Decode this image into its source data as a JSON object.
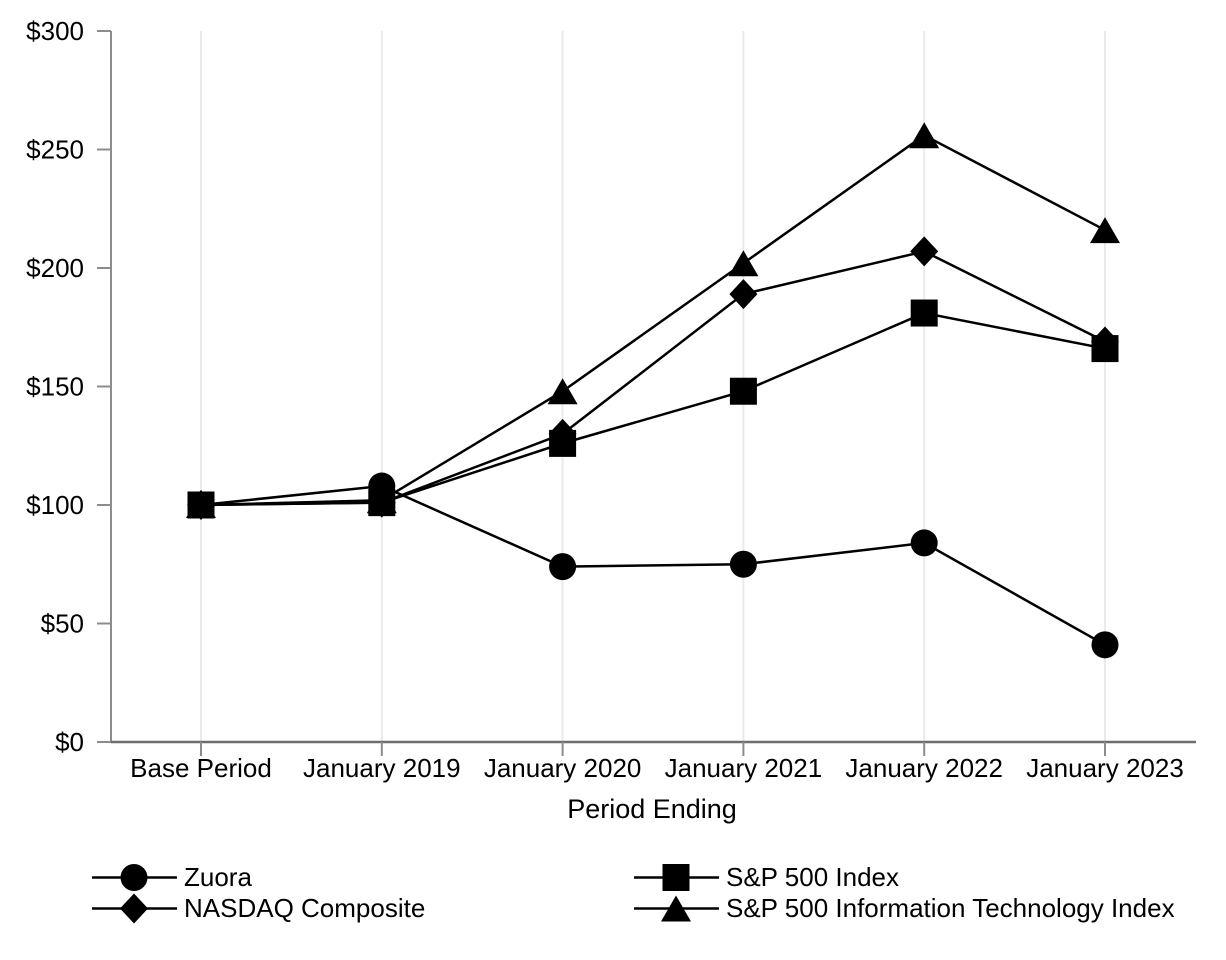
{
  "chart_data": {
    "type": "line",
    "title": "",
    "xlabel": "Period Ending",
    "ylabel": "",
    "categories": [
      "Base Period",
      "January 2019",
      "January 2020",
      "January 2021",
      "January 2022",
      "January 2023"
    ],
    "y_tick_labels": [
      "$0",
      "$50",
      "$100",
      "$150",
      "$200",
      "$250",
      "$300"
    ],
    "y_tick_values": [
      0,
      50,
      100,
      150,
      200,
      250,
      300
    ],
    "ylim": [
      0,
      300
    ],
    "grid": "vertical-gridlines-only",
    "legend_position": "bottom",
    "series": [
      {
        "name": "Zuora",
        "marker": "circle",
        "values": [
          100,
          108,
          74,
          75,
          84,
          41
        ]
      },
      {
        "name": "S&P 500 Index",
        "marker": "square",
        "values": [
          100,
          101,
          126,
          148,
          181,
          166
        ]
      },
      {
        "name": "NASDAQ Composite",
        "marker": "diamond",
        "values": [
          100,
          101,
          130,
          189,
          207,
          169
        ]
      },
      {
        "name": "S&P 500 Information Technology Index",
        "marker": "triangle",
        "values": [
          100,
          102,
          148,
          202,
          256,
          216
        ]
      }
    ],
    "colors": {
      "series": "#000000",
      "gridline": "#eaeaea",
      "y_axis": "#8c8c8c",
      "x_axis": "#6e6e6e",
      "tick": "#8c8c8c",
      "text": "#000000"
    }
  }
}
